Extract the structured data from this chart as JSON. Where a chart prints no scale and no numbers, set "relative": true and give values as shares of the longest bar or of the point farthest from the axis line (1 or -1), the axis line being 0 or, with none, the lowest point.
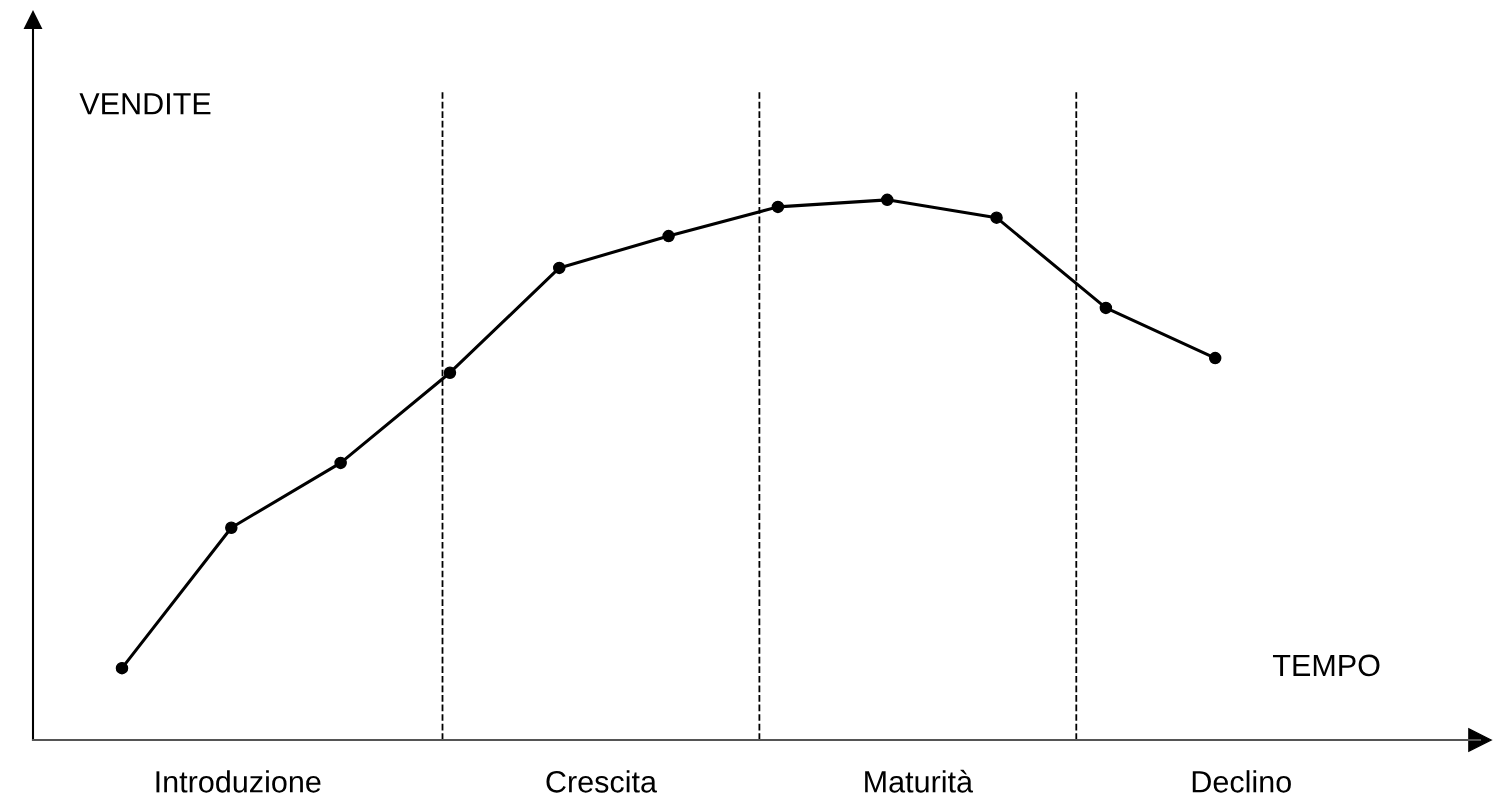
{
  "chart_data": {
    "type": "line",
    "relative": true,
    "xlabel": "TEMPO",
    "ylabel": "VENDITE",
    "categories": [
      null,
      null,
      null,
      null,
      null,
      null,
      null,
      null,
      null,
      null,
      null
    ],
    "series": [
      {
        "color": "#000000",
        "values": [
          0.133,
          0.393,
          0.513,
          0.68,
          0.874,
          0.933,
          0.987,
          1,
          0.967,
          0.8,
          0.707
        ]
      }
    ],
    "annotations": [
      "Introduzione",
      "Crescita",
      "Maturità",
      "Declino"
    ],
    "marker": "circle",
    "line_style": "solid"
  }
}
